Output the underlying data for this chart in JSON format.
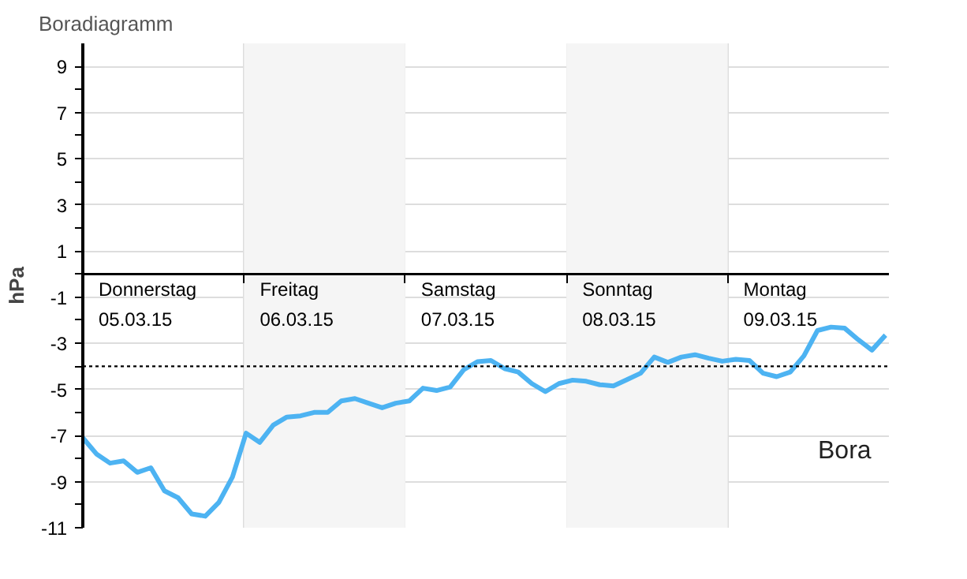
{
  "chart_data": {
    "type": "line",
    "title": "Boradiagramm",
    "ylabel": "hPa",
    "categories": [
      null,
      null,
      null,
      null,
      null,
      null,
      null,
      null,
      null,
      null,
      null,
      null,
      null,
      null,
      null,
      null,
      null,
      null,
      null,
      null,
      null,
      null,
      null,
      null,
      null,
      null,
      null,
      null,
      null,
      null,
      null,
      null,
      null,
      null,
      null,
      null,
      null,
      null,
      null,
      null,
      null,
      null,
      null,
      null,
      null,
      null,
      null,
      null,
      null,
      null,
      null,
      null,
      null,
      null,
      null,
      null,
      null,
      null,
      null,
      null
    ],
    "series": [
      {
        "color": "#4db3f2",
        "values": [
          -7.1,
          -7.8,
          -8.2,
          -8.1,
          -8.6,
          -8.4,
          -9.4,
          -9.7,
          -10.4,
          -10.5,
          -9.9,
          -8.8,
          -6.9,
          -7.3,
          -6.55,
          -6.2,
          -6.15,
          -6.0,
          -6.0,
          -5.5,
          -5.4,
          -5.6,
          -5.8,
          -5.6,
          -5.5,
          -4.95,
          -5.05,
          -4.9,
          -4.15,
          -3.8,
          -3.75,
          -4.1,
          -4.25,
          -4.75,
          -5.1,
          -4.75,
          -4.6,
          -4.65,
          -4.8,
          -4.85,
          -4.58,
          -4.3,
          -3.6,
          -3.83,
          -3.6,
          -3.5,
          -3.65,
          -3.78,
          -3.7,
          -3.75,
          -4.3,
          -4.45,
          -4.25,
          -3.55,
          -2.45,
          -2.3,
          -2.35,
          -2.85,
          -3.3,
          -2.65
        ]
      }
    ],
    "ylim": [
      -11,
      10
    ],
    "yticks": [
      -11,
      {
        "value": -10,
        "label": null
      },
      -9,
      {
        "value": -8,
        "label": null
      },
      -7,
      {
        "value": -6,
        "label": null
      },
      -5,
      {
        "value": -4,
        "label": null
      },
      -3,
      {
        "value": -2,
        "label": null
      },
      -1,
      {
        "value": 0,
        "label": null
      },
      1,
      {
        "value": 2,
        "label": null
      },
      3,
      {
        "value": 4,
        "label": null
      },
      5,
      {
        "value": 6,
        "label": null
      },
      7,
      {
        "value": 8,
        "label": null
      },
      9
    ],
    "tick_labels": "y",
    "grid": true,
    "marker": "none",
    "line_style": "solid",
    "ref_lines": [
      {
        "axis": "y",
        "value": -4,
        "color": "#000000",
        "line_style": "dotted"
      },
      {
        "axis": "y",
        "value": 0,
        "color": "#000000",
        "line_style": "solid"
      }
    ],
    "annotations": [
      "Donnerstag\n05.03.15",
      "Freitag\n06.03.15",
      "Samstag\n07.03.15",
      "Sonntag\n08.03.15",
      "Montag\n09.03.15",
      "Bora"
    ]
  }
}
